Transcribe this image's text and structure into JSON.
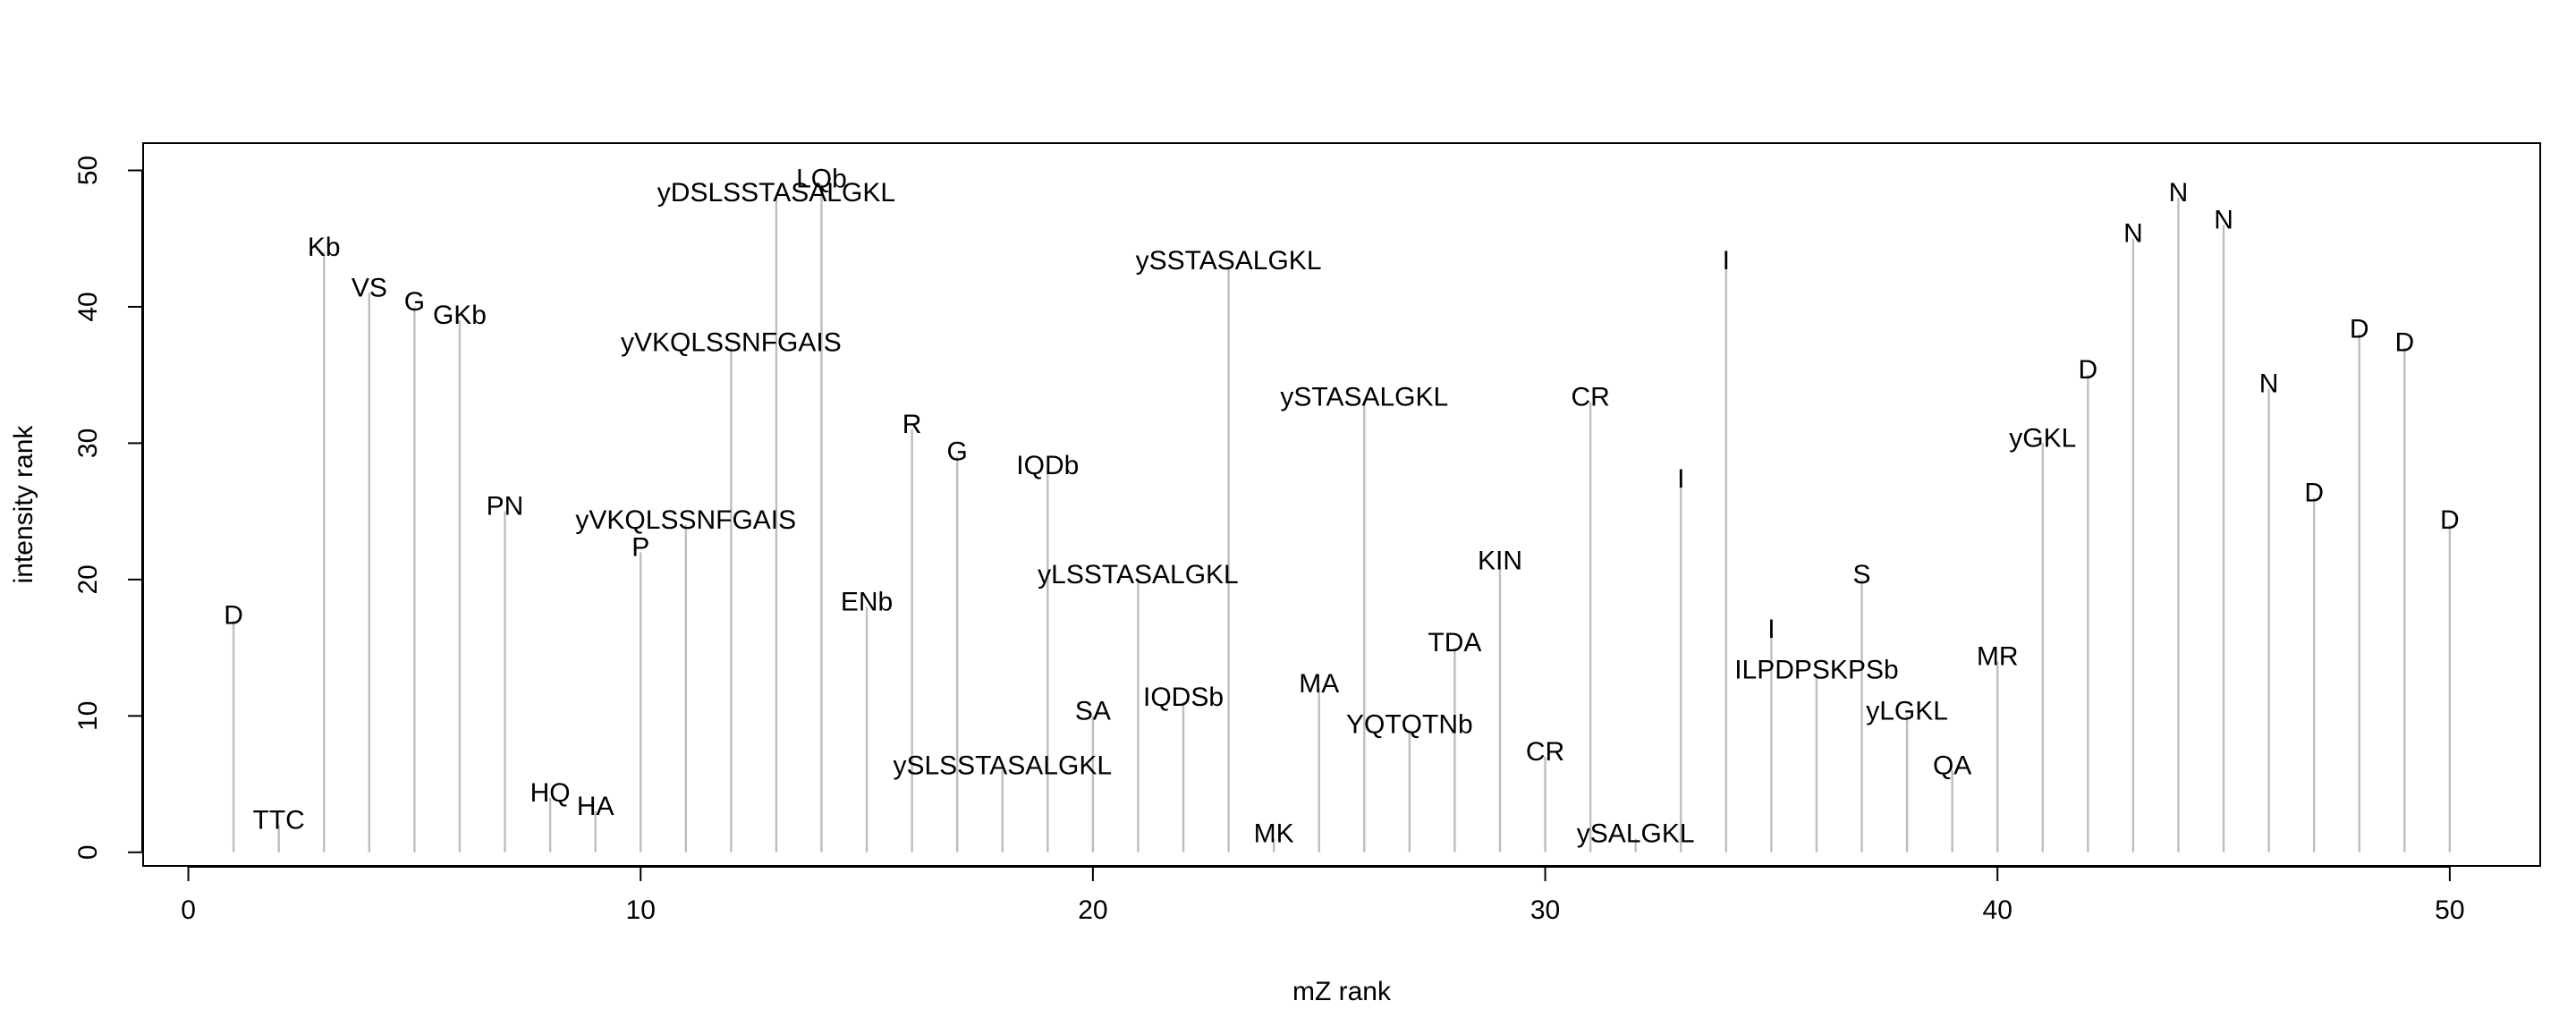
{
  "chart_data": {
    "type": "spectrum",
    "xlabel": "mZ rank",
    "ylabel": "intensity rank",
    "xlim": [
      -1,
      52
    ],
    "ylim": [
      -1,
      52
    ],
    "xticks": [
      0,
      10,
      20,
      30,
      40,
      50
    ],
    "yticks": [
      0,
      10,
      20,
      30,
      40,
      50
    ],
    "grid": false,
    "stem_color": "#bebebe",
    "peaks": [
      {
        "x": 1,
        "y": 17,
        "label": "D"
      },
      {
        "x": 2,
        "y": 2,
        "label": "TTC"
      },
      {
        "x": 3,
        "y": 44,
        "label": "Kb"
      },
      {
        "x": 4,
        "y": 41,
        "label": "VS"
      },
      {
        "x": 5,
        "y": 40,
        "label": "G"
      },
      {
        "x": 6,
        "y": 39,
        "label": "GKb"
      },
      {
        "x": 7,
        "y": 25,
        "label": "PN"
      },
      {
        "x": 8,
        "y": 4,
        "label": "HQ"
      },
      {
        "x": 9,
        "y": 3,
        "label": "HA"
      },
      {
        "x": 10,
        "y": 22,
        "label": "P"
      },
      {
        "x": 11,
        "y": 24,
        "label": "yVKQLSSNFGAIS"
      },
      {
        "x": 12,
        "y": 37,
        "label": "yVKQLSSNFGAIS"
      },
      {
        "x": 13,
        "y": 48,
        "label": "yDSLSSTASALGKL"
      },
      {
        "x": 14,
        "y": 49,
        "label": "LQb"
      },
      {
        "x": 15,
        "y": 18,
        "label": "ENb"
      },
      {
        "x": 16,
        "y": 31,
        "label": "R"
      },
      {
        "x": 17,
        "y": 29,
        "label": "G"
      },
      {
        "x": 18,
        "y": 6,
        "label": "ySLSSTASALGKL"
      },
      {
        "x": 19,
        "y": 28,
        "label": "IQDb"
      },
      {
        "x": 20,
        "y": 10,
        "label": "SA"
      },
      {
        "x": 21,
        "y": 20,
        "label": "yLSSTASALGKL"
      },
      {
        "x": 22,
        "y": 11,
        "label": "IQDSb"
      },
      {
        "x": 23,
        "y": 43,
        "label": "ySSTASALGKL"
      },
      {
        "x": 24,
        "y": 1,
        "label": "MK"
      },
      {
        "x": 25,
        "y": 12,
        "label": "MA"
      },
      {
        "x": 26,
        "y": 33,
        "label": "ySTASALGKL"
      },
      {
        "x": 27,
        "y": 9,
        "label": "YQTQTNb"
      },
      {
        "x": 28,
        "y": 15,
        "label": "TDA"
      },
      {
        "x": 29,
        "y": 21,
        "label": "KIN"
      },
      {
        "x": 30,
        "y": 7,
        "label": "CR"
      },
      {
        "x": 31,
        "y": 33,
        "label": "CR"
      },
      {
        "x": 32,
        "y": 1,
        "label": "ySALGKL"
      },
      {
        "x": 33,
        "y": 27,
        "label": "I"
      },
      {
        "x": 34,
        "y": 43,
        "label": "I"
      },
      {
        "x": 35,
        "y": 16,
        "label": "I"
      },
      {
        "x": 36,
        "y": 13,
        "label": "ILPDPSKPSb"
      },
      {
        "x": 37,
        "y": 20,
        "label": "S"
      },
      {
        "x": 38,
        "y": 10,
        "label": "yLGKL"
      },
      {
        "x": 39,
        "y": 6,
        "label": "QA"
      },
      {
        "x": 40,
        "y": 14,
        "label": "MR"
      },
      {
        "x": 41,
        "y": 30,
        "label": "yGKL"
      },
      {
        "x": 42,
        "y": 35,
        "label": "D"
      },
      {
        "x": 43,
        "y": 45,
        "label": "N"
      },
      {
        "x": 44,
        "y": 48,
        "label": "N"
      },
      {
        "x": 45,
        "y": 46,
        "label": "N"
      },
      {
        "x": 46,
        "y": 34,
        "label": "N"
      },
      {
        "x": 47,
        "y": 26,
        "label": "D"
      },
      {
        "x": 48,
        "y": 38,
        "label": "D"
      },
      {
        "x": 49,
        "y": 37,
        "label": "D"
      },
      {
        "x": 50,
        "y": 24,
        "label": "D"
      }
    ]
  }
}
